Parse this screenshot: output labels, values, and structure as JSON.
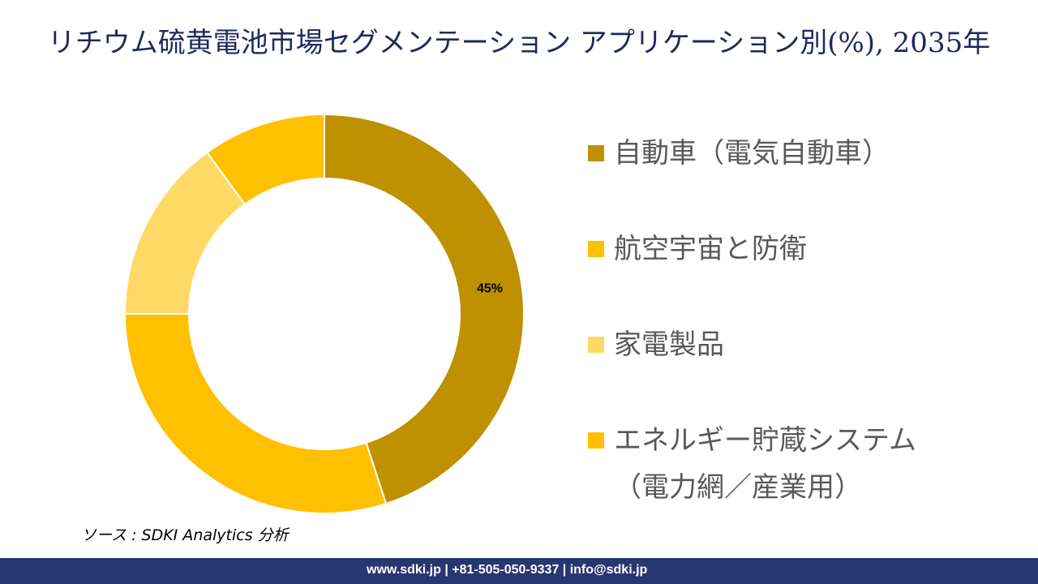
{
  "chart_data": {
    "type": "pie",
    "subtype": "donut",
    "title": "リチウム硫黄電池市場セグメンテーション アプリケーション別(%), 2035年",
    "categories": [
      "自動車（電気自動車）",
      "航空宇宙と防衛",
      "家電製品",
      "エネルギー貯蔵システム（電力網／産業用）"
    ],
    "values": [
      45,
      30,
      15,
      10
    ],
    "data_labels": [
      "45%",
      "",
      "",
      ""
    ],
    "colors": [
      "#BF9000",
      "#FFC000",
      "#FFD966",
      "#FFC000"
    ],
    "legend_placement": "right"
  },
  "legend": [
    {
      "label": "自動車（電気自動車）",
      "color": "#BF9000"
    },
    {
      "label": "航空宇宙と防衛",
      "color": "#FFC000"
    },
    {
      "label": "家電製品",
      "color": "#FFD966"
    },
    {
      "label": "エネルギー貯蔵システム",
      "label2": "（電力網／産業用）",
      "color": "#FFC000"
    }
  ],
  "source": "ソース : SDKI Analytics 分析",
  "footer": "www.sdki.jp | +81-505-050-9337 | info@sdki.jp"
}
